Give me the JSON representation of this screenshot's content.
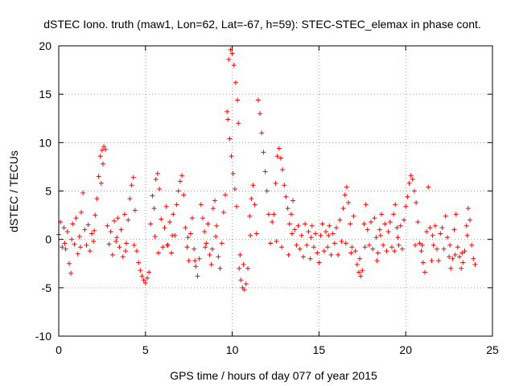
{
  "chart_data": {
    "type": "scatter",
    "title": "dSTEC Iono. truth (maw1, Lon=62, Lat=-67, h=59): STEC-STEC_elemax in phase cont.",
    "xlabel": "GPS time / hours of day 077 of year 2015",
    "ylabel": "dSTEC  / TECUs",
    "xlim": [
      0,
      25
    ],
    "ylim": [
      -10,
      20
    ],
    "xticks": [
      0,
      5,
      10,
      15,
      20,
      25
    ],
    "yticks": [
      -10,
      -5,
      0,
      5,
      10,
      15,
      20
    ],
    "grid": true,
    "marker": "plus",
    "color": "#ff0000",
    "x_extent": [
      0,
      24
    ],
    "series": [
      {
        "points": [
          [
            0.0,
            0.5
          ],
          [
            0.1,
            1.8
          ],
          [
            0.2,
            -0.8
          ],
          [
            0.3,
            1.2
          ],
          [
            0.4,
            -1.0
          ],
          [
            0.5,
            0.8
          ],
          [
            0.6,
            -2.5
          ],
          [
            0.7,
            -3.5
          ],
          [
            0.8,
            1.6
          ],
          [
            0.9,
            -0.5
          ],
          [
            1.0,
            2.2
          ],
          [
            1.1,
            -1.5
          ],
          [
            1.2,
            0.3
          ],
          [
            1.3,
            2.8
          ],
          [
            1.4,
            4.8
          ],
          [
            1.5,
            1.0
          ],
          [
            1.6,
            -0.6
          ],
          [
            1.7,
            1.5
          ],
          [
            1.8,
            -1.2
          ],
          [
            1.9,
            0.6
          ],
          [
            2.0,
            -0.2
          ],
          [
            2.1,
            2.5
          ],
          [
            2.2,
            4.2
          ],
          [
            2.3,
            6.5
          ],
          [
            2.4,
            8.6
          ],
          [
            2.5,
            9.2
          ],
          [
            2.6,
            9.6
          ],
          [
            2.7,
            9.3
          ],
          [
            2.55,
            7.8
          ],
          [
            2.45,
            5.8
          ],
          [
            2.8,
            1.4
          ],
          [
            2.9,
            -0.5
          ],
          [
            3.0,
            0.8
          ],
          [
            3.1,
            -1.6
          ],
          [
            3.2,
            1.9
          ],
          [
            3.3,
            -0.2
          ],
          [
            3.4,
            2.2
          ],
          [
            3.5,
            -0.8
          ],
          [
            3.6,
            1.0
          ],
          [
            3.7,
            -1.8
          ],
          [
            3.8,
            2.6
          ],
          [
            3.9,
            -0.4
          ],
          [
            4.0,
            2.0
          ],
          [
            4.1,
            4.2
          ],
          [
            4.2,
            5.6
          ],
          [
            4.3,
            6.4
          ],
          [
            4.4,
            3.0
          ],
          [
            4.5,
            -1.2
          ],
          [
            4.6,
            -2.4
          ],
          [
            4.7,
            -3.2
          ],
          [
            4.8,
            -3.8
          ],
          [
            4.9,
            -4.2
          ],
          [
            5.0,
            -4.5
          ],
          [
            5.1,
            -4.0
          ],
          [
            5.2,
            -3.4
          ],
          [
            5.3,
            1.6
          ],
          [
            5.4,
            4.5
          ],
          [
            5.5,
            3.2
          ],
          [
            5.6,
            6.2
          ],
          [
            5.7,
            6.8
          ],
          [
            5.8,
            5.2
          ],
          [
            5.9,
            2.1
          ],
          [
            6.0,
            -0.8
          ],
          [
            6.1,
            1.2
          ],
          [
            6.2,
            3.4
          ],
          [
            6.3,
            -0.6
          ],
          [
            6.4,
            1.8
          ],
          [
            6.5,
            -1.4
          ],
          [
            6.6,
            2.6
          ],
          [
            6.7,
            0.4
          ],
          [
            6.8,
            3.6
          ],
          [
            6.9,
            5.0
          ],
          [
            7.0,
            6.0
          ],
          [
            7.1,
            6.6
          ],
          [
            7.2,
            4.6
          ],
          [
            7.3,
            1.2
          ],
          [
            7.4,
            -0.8
          ],
          [
            7.5,
            -2.2
          ],
          [
            7.6,
            0.6
          ],
          [
            7.7,
            2.2
          ],
          [
            7.8,
            -1.0
          ],
          [
            7.9,
            -2.8
          ],
          [
            8.0,
            -3.8
          ],
          [
            8.1,
            -2.0
          ],
          [
            8.2,
            3.6
          ],
          [
            8.3,
            2.2
          ],
          [
            8.4,
            0.8
          ],
          [
            8.5,
            -0.4
          ],
          [
            8.6,
            1.6
          ],
          [
            8.7,
            -1.6
          ],
          [
            8.8,
            -2.6
          ],
          [
            8.9,
            3.2
          ],
          [
            9.0,
            4.0
          ],
          [
            9.1,
            1.4
          ],
          [
            9.2,
            -1.8
          ],
          [
            9.3,
            -3.0
          ],
          [
            9.4,
            -0.4
          ],
          [
            9.5,
            2.8
          ],
          [
            9.6,
            4.6
          ],
          [
            9.7,
            13.2
          ],
          [
            9.75,
            12.4
          ],
          [
            9.8,
            18.6
          ],
          [
            9.9,
            19.6
          ],
          [
            10.0,
            19.2
          ],
          [
            10.1,
            18.0
          ],
          [
            10.2,
            16.2
          ],
          [
            10.3,
            14.4
          ],
          [
            10.35,
            12.0
          ],
          [
            9.85,
            10.4
          ],
          [
            9.95,
            8.6
          ],
          [
            10.05,
            6.8
          ],
          [
            10.15,
            5.2
          ],
          [
            10.25,
            3.4
          ],
          [
            10.4,
            -3.0
          ],
          [
            10.5,
            -4.2
          ],
          [
            10.6,
            -5.0
          ],
          [
            10.7,
            -5.2
          ],
          [
            10.8,
            -4.6
          ],
          [
            10.9,
            -3.0
          ],
          [
            11.0,
            2.4
          ],
          [
            11.1,
            4.2
          ],
          [
            11.2,
            5.6
          ],
          [
            11.3,
            3.6
          ],
          [
            11.4,
            0.6
          ],
          [
            11.5,
            14.4
          ],
          [
            11.6,
            13.0
          ],
          [
            11.7,
            11.0
          ],
          [
            11.8,
            9.0
          ],
          [
            11.9,
            7.0
          ],
          [
            12.0,
            5.0
          ],
          [
            12.1,
            2.6
          ],
          [
            12.2,
            -0.4
          ],
          [
            12.3,
            1.8
          ],
          [
            12.4,
            2.6
          ],
          [
            12.5,
            5.8
          ],
          [
            12.6,
            8.6
          ],
          [
            12.7,
            9.4
          ],
          [
            12.8,
            8.4
          ],
          [
            12.9,
            7.2
          ],
          [
            13.0,
            5.6
          ],
          [
            13.1,
            4.4
          ],
          [
            13.2,
            3.2
          ],
          [
            13.3,
            1.6
          ],
          [
            13.4,
            2.6
          ],
          [
            13.5,
            4.0
          ],
          [
            13.6,
            1.0
          ],
          [
            13.7,
            -0.6
          ],
          [
            13.8,
            1.4
          ],
          [
            13.9,
            -1.0
          ],
          [
            14.0,
            0.4
          ],
          [
            14.1,
            -1.8
          ],
          [
            14.2,
            1.6
          ],
          [
            14.3,
            -0.6
          ],
          [
            14.4,
            0.8
          ],
          [
            14.5,
            -2.0
          ],
          [
            14.6,
            1.4
          ],
          [
            14.7,
            -0.8
          ],
          [
            14.8,
            0.6
          ],
          [
            14.9,
            -1.4
          ],
          [
            15.0,
            -2.4
          ],
          [
            15.1,
            0.4
          ],
          [
            15.2,
            1.6
          ],
          [
            15.3,
            -1.2
          ],
          [
            15.4,
            0.8
          ],
          [
            15.5,
            -0.8
          ],
          [
            15.6,
            1.4
          ],
          [
            15.7,
            -1.6
          ],
          [
            15.8,
            0.6
          ],
          [
            15.9,
            -0.4
          ],
          [
            16.0,
            1.2
          ],
          [
            16.1,
            -1.6
          ],
          [
            16.2,
            2.0
          ],
          [
            16.3,
            -0.2
          ],
          [
            16.4,
            3.2
          ],
          [
            16.5,
            4.6
          ],
          [
            16.6,
            5.4
          ],
          [
            16.7,
            3.8
          ],
          [
            16.8,
            1.6
          ],
          [
            16.9,
            -0.8
          ],
          [
            17.0,
            2.4
          ],
          [
            17.1,
            -1.2
          ],
          [
            17.2,
            -2.6
          ],
          [
            17.3,
            -3.4
          ],
          [
            17.4,
            -3.8
          ],
          [
            17.5,
            -3.2
          ],
          [
            17.6,
            1.6
          ],
          [
            17.7,
            3.6
          ],
          [
            17.8,
            1.0
          ],
          [
            17.9,
            -0.6
          ],
          [
            18.0,
            1.8
          ],
          [
            18.1,
            -1.0
          ],
          [
            18.2,
            2.2
          ],
          [
            18.3,
            0.2
          ],
          [
            18.4,
            -1.4
          ],
          [
            18.5,
            1.0
          ],
          [
            18.6,
            2.6
          ],
          [
            18.7,
            -0.6
          ],
          [
            18.8,
            1.6
          ],
          [
            18.9,
            -1.2
          ],
          [
            19.0,
            0.8
          ],
          [
            19.1,
            1.8
          ],
          [
            19.2,
            -0.8
          ],
          [
            19.3,
            2.6
          ],
          [
            19.4,
            3.6
          ],
          [
            19.5,
            1.2
          ],
          [
            19.6,
            -0.6
          ],
          [
            19.7,
            1.4
          ],
          [
            19.8,
            -1.0
          ],
          [
            19.9,
            2.0
          ],
          [
            20.0,
            3.4
          ],
          [
            20.1,
            4.4
          ],
          [
            20.2,
            5.8
          ],
          [
            20.3,
            6.6
          ],
          [
            20.4,
            6.2
          ],
          [
            20.5,
            5.0
          ],
          [
            20.6,
            3.8
          ],
          [
            20.7,
            1.8
          ],
          [
            20.8,
            -0.4
          ],
          [
            20.9,
            -1.2
          ],
          [
            21.0,
            -2.4
          ],
          [
            21.1,
            -3.4
          ],
          [
            21.2,
            0.8
          ],
          [
            21.3,
            5.4
          ],
          [
            21.4,
            1.2
          ],
          [
            21.5,
            -2.2
          ],
          [
            21.6,
            -0.6
          ],
          [
            21.7,
            1.4
          ],
          [
            21.8,
            -1.0
          ],
          [
            21.9,
            -2.2
          ],
          [
            22.0,
            0.6
          ],
          [
            22.1,
            1.2
          ],
          [
            22.2,
            -1.0
          ],
          [
            22.3,
            2.4
          ],
          [
            22.4,
            0.2
          ],
          [
            22.5,
            -1.8
          ],
          [
            22.6,
            -3.0
          ],
          [
            22.7,
            -2.0
          ],
          [
            22.8,
            1.0
          ],
          [
            22.9,
            2.6
          ],
          [
            23.0,
            -0.8
          ],
          [
            23.1,
            -1.8
          ],
          [
            23.2,
            -3.0
          ],
          [
            23.3,
            -2.4
          ],
          [
            23.4,
            -1.2
          ],
          [
            23.5,
            1.4
          ],
          [
            23.6,
            3.2
          ],
          [
            23.7,
            2.0
          ],
          [
            23.8,
            -0.6
          ],
          [
            23.9,
            -2.0
          ],
          [
            24.0,
            -2.6
          ],
          [
            0.35,
            -0.4
          ],
          [
            1.25,
            -0.8
          ],
          [
            2.05,
            0.9
          ],
          [
            3.35,
            0.2
          ],
          [
            4.35,
            -0.6
          ],
          [
            5.55,
            0.3
          ],
          [
            6.55,
            0.4
          ],
          [
            7.45,
            0.2
          ],
          [
            8.45,
            -0.8
          ],
          [
            9.05,
            0.3
          ],
          [
            11.05,
            0.4
          ],
          [
            12.55,
            -0.2
          ],
          [
            13.45,
            0.6
          ],
          [
            14.55,
            0.2
          ],
          [
            15.55,
            0.4
          ],
          [
            16.55,
            -0.4
          ],
          [
            17.65,
            -0.8
          ],
          [
            18.55,
            0.4
          ],
          [
            19.55,
            0.2
          ],
          [
            20.55,
            -0.6
          ],
          [
            21.55,
            0.4
          ],
          [
            22.55,
            -0.6
          ],
          [
            23.55,
            0.4
          ],
          [
            0.75,
            0.0
          ],
          [
            3.85,
            -1.2
          ],
          [
            6.25,
            -0.6
          ],
          [
            8.85,
            -1.0
          ],
          [
            10.45,
            -1.6
          ],
          [
            12.85,
            -0.8
          ],
          [
            16.85,
            -1.4
          ],
          [
            18.35,
            -2.2
          ],
          [
            20.95,
            -0.6
          ],
          [
            22.85,
            -1.6
          ],
          [
            5.75,
            -1.4
          ],
          [
            7.85,
            -2.2
          ],
          [
            10.65,
            -2.6
          ],
          [
            13.25,
            -1.6
          ],
          [
            17.35,
            -2.0
          ],
          [
            19.35,
            -1.2
          ],
          [
            23.25,
            -1.4
          ]
        ]
      }
    ]
  }
}
